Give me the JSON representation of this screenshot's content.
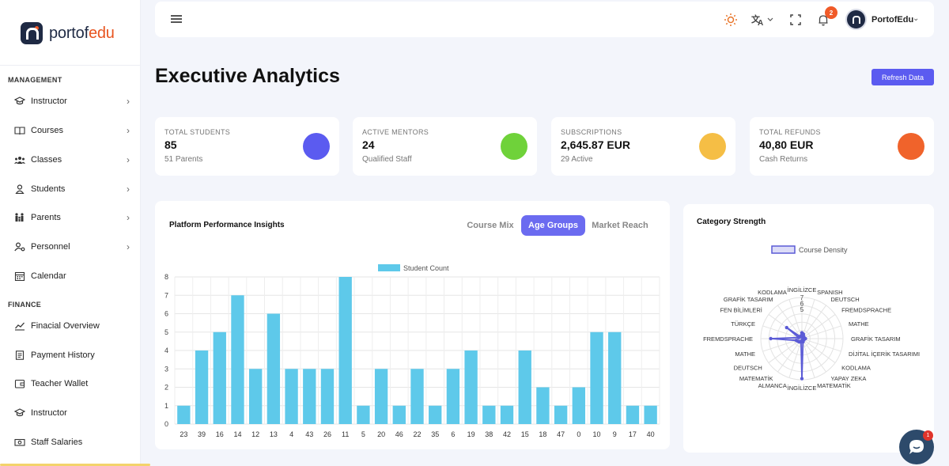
{
  "brand": {
    "name_main": "portof",
    "name_accent": "edu"
  },
  "sidebar": {
    "management_title": "MANAGEMENT",
    "management_items": [
      {
        "label": "Instructor",
        "icon": "graduation-cap-icon",
        "has_chevron": true
      },
      {
        "label": "Courses",
        "icon": "book-open-icon",
        "has_chevron": true
      },
      {
        "label": "Classes",
        "icon": "users-group-icon",
        "has_chevron": true
      },
      {
        "label": "Students",
        "icon": "user-icon",
        "has_chevron": true
      },
      {
        "label": "Parents",
        "icon": "family-icon",
        "has_chevron": true
      },
      {
        "label": "Personnel",
        "icon": "user-cog-icon",
        "has_chevron": true
      },
      {
        "label": "Calendar",
        "icon": "calendar-icon",
        "has_chevron": false
      }
    ],
    "finance_title": "FINANCE",
    "finance_items": [
      {
        "label": "Finacial Overview",
        "icon": "chart-line-icon"
      },
      {
        "label": "Payment History",
        "icon": "receipt-icon"
      },
      {
        "label": "Teacher Wallet",
        "icon": "wallet-icon"
      },
      {
        "label": "Instructor",
        "icon": "graduation-cap-icon"
      },
      {
        "label": "Staff Salaries",
        "icon": "money-icon"
      }
    ]
  },
  "topbar": {
    "notifications_count": "2",
    "user_name": "PortofEdu"
  },
  "page": {
    "title": "Executive Analytics",
    "refresh_label": "Refresh Data"
  },
  "stats": [
    {
      "label": "TOTAL STUDENTS",
      "value": "85",
      "sub": "51 Parents",
      "color": "#5b5bf0"
    },
    {
      "label": "ACTIVE MENTORS",
      "value": "24",
      "sub": "Qualified Staff",
      "color": "#6fd23a"
    },
    {
      "label": "SUBSCRIPTIONS",
      "value": "2,645.87 EUR",
      "sub": "29 Active",
      "color": "#f5be45"
    },
    {
      "label": "TOTAL REFUNDS",
      "value": "40,80 EUR",
      "sub": "Cash Returns",
      "color": "#f0632b"
    }
  ],
  "performance": {
    "title": "Platform Performance Insights",
    "tabs": [
      "Course Mix",
      "Age Groups",
      "Market Reach"
    ],
    "active_tab": 1
  },
  "category": {
    "title": "Category Strength"
  },
  "chat": {
    "badge": "1"
  },
  "chart_data": [
    {
      "type": "bar",
      "title": "",
      "legend": [
        "Student Count"
      ],
      "legend_position": "top",
      "color": "#5ec9ea",
      "categories": [
        "23",
        "39",
        "16",
        "14",
        "12",
        "13",
        "4",
        "43",
        "26",
        "11",
        "5",
        "20",
        "46",
        "22",
        "35",
        "6",
        "19",
        "38",
        "42",
        "15",
        "18",
        "47",
        "0",
        "10",
        "9",
        "17",
        "40"
      ],
      "series": [
        {
          "name": "Student Count",
          "values": [
            1,
            4,
            5,
            7,
            3,
            6,
            3,
            3,
            3,
            8,
            1,
            3,
            1,
            3,
            1,
            3,
            4,
            1,
            1,
            4,
            2,
            1,
            2,
            5,
            5,
            1,
            1
          ]
        }
      ],
      "ylim": [
        0,
        8
      ],
      "yticks": [
        "0",
        "1",
        "2",
        "3",
        "4",
        "5",
        "6",
        "7",
        "8"
      ],
      "grid": true
    },
    {
      "type": "radar",
      "title": "",
      "legend": [
        "Course Density"
      ],
      "legend_position": "top",
      "color": "#5b5bd6",
      "labels": [
        "İNGİLİZCE",
        "SPANISH",
        "DEUTSCH",
        "FREMDSPRACHE",
        "MATHE",
        "GRAFİK TASARIM",
        "DİJİTAL İÇERİK TASARIMI",
        "KODLAMA",
        "YAPAY ZEKA",
        "MATEMATİK",
        "İNGİLİZCE",
        "ALMANCA",
        "MATEMATİK",
        "DEUTSCH",
        "MATHE",
        "FREMDSPRACHE",
        "TÜRKÇE",
        "FEN BİLİMLERİ",
        "GRAFİK TASARIM",
        "KODLAMA"
      ],
      "series": [
        {
          "name": "Course Density",
          "values": [
            1,
            0.8,
            0.5,
            0.3,
            0.4,
            0.6,
            0.3,
            0.4,
            0.2,
            0.6,
            6.8,
            0.5,
            0.7,
            0.8,
            1,
            5.3,
            0.6,
            3.2,
            0.4,
            0.5
          ]
        }
      ],
      "rticks": [
        "5",
        "6",
        "7"
      ],
      "rmax": 7
    }
  ]
}
